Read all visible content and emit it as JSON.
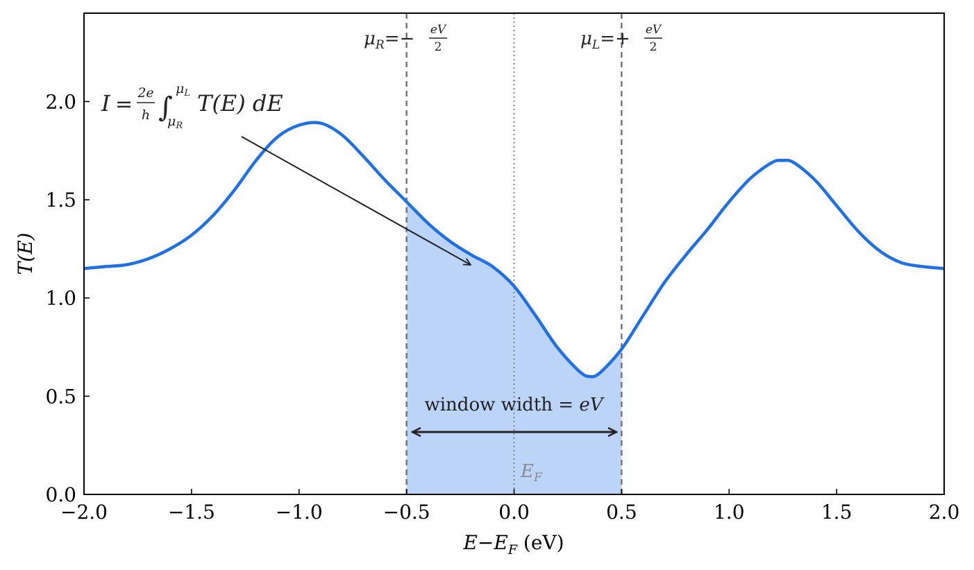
{
  "chart_data": {
    "type": "line",
    "xlabel": {
      "var": "E",
      "minus": "−",
      "sub_var": "E",
      "sub": "F",
      "unit": " (eV)"
    },
    "ylabel": {
      "prefix": "T(",
      "var": "E",
      "suffix": ")"
    },
    "xlim": [
      -2.0,
      2.0
    ],
    "ylim": [
      0.0,
      2.45
    ],
    "x_ticks": [
      -2.0,
      -1.5,
      -1.0,
      -0.5,
      0.0,
      0.5,
      1.0,
      1.5,
      2.0
    ],
    "x_tick_labels": [
      "−2.0",
      "−1.5",
      "−1.0",
      "−0.5",
      "0.0",
      "0.5",
      "1.0",
      "1.5",
      "2.0"
    ],
    "y_ticks": [
      0.0,
      0.5,
      1.0,
      1.5,
      2.0
    ],
    "y_tick_labels": [
      "0.0",
      "0.5",
      "1.0",
      "1.5",
      "2.0"
    ],
    "grid": false,
    "series": [
      {
        "color": "#1f6fe5",
        "x": [
          -2.0,
          -1.9,
          -1.8,
          -1.7,
          -1.6,
          -1.5,
          -1.4,
          -1.3,
          -1.2,
          -1.1,
          -1.0,
          -0.9,
          -0.8,
          -0.7,
          -0.6,
          -0.5,
          -0.4,
          -0.3,
          -0.2,
          -0.1,
          0.0,
          0.1,
          0.2,
          0.3,
          0.35,
          0.4,
          0.5,
          0.6,
          0.7,
          0.8,
          0.9,
          1.0,
          1.1,
          1.2,
          1.25,
          1.3,
          1.4,
          1.5,
          1.6,
          1.7,
          1.8,
          1.9,
          2.0
        ],
        "y": [
          1.15,
          1.16,
          1.17,
          1.2,
          1.25,
          1.32,
          1.42,
          1.55,
          1.7,
          1.82,
          1.88,
          1.89,
          1.83,
          1.72,
          1.6,
          1.49,
          1.38,
          1.29,
          1.22,
          1.16,
          1.06,
          0.91,
          0.75,
          0.63,
          0.6,
          0.62,
          0.74,
          0.91,
          1.08,
          1.22,
          1.35,
          1.49,
          1.61,
          1.69,
          1.7,
          1.69,
          1.6,
          1.47,
          1.34,
          1.24,
          1.18,
          1.16,
          1.15
        ]
      }
    ],
    "shaded_window": {
      "x_from": -0.5,
      "x_to": 0.5,
      "color": "#bcd4f7"
    },
    "vlines": [
      {
        "x": -0.5,
        "style": "dashed",
        "color": "#6e6e7e"
      },
      {
        "x": 0.5,
        "style": "dashed",
        "color": "#6e6e7e"
      },
      {
        "x": 0.0,
        "style": "dotted",
        "color": "#7a7a7a"
      }
    ],
    "annotations": {
      "mu_r": {
        "mu": "μ",
        "sub": "R",
        "eq": "=−",
        "num": "eV",
        "den": "2"
      },
      "mu_l": {
        "mu": "μ",
        "sub": "L",
        "eq": "=+",
        "num": "eV",
        "den": "2"
      },
      "current": {
        "lhs": "I",
        "eq": "=",
        "num": "2e",
        "den": "h",
        "int": "∫",
        "upper": "μ",
        "upper_sub": "L",
        "lower": "μ",
        "lower_sub": "R",
        "body": "T(E)",
        "d": " dE"
      },
      "window": {
        "text": "window width =",
        "var": "eV"
      },
      "ef": {
        "var": "E",
        "sub": "F"
      }
    }
  }
}
